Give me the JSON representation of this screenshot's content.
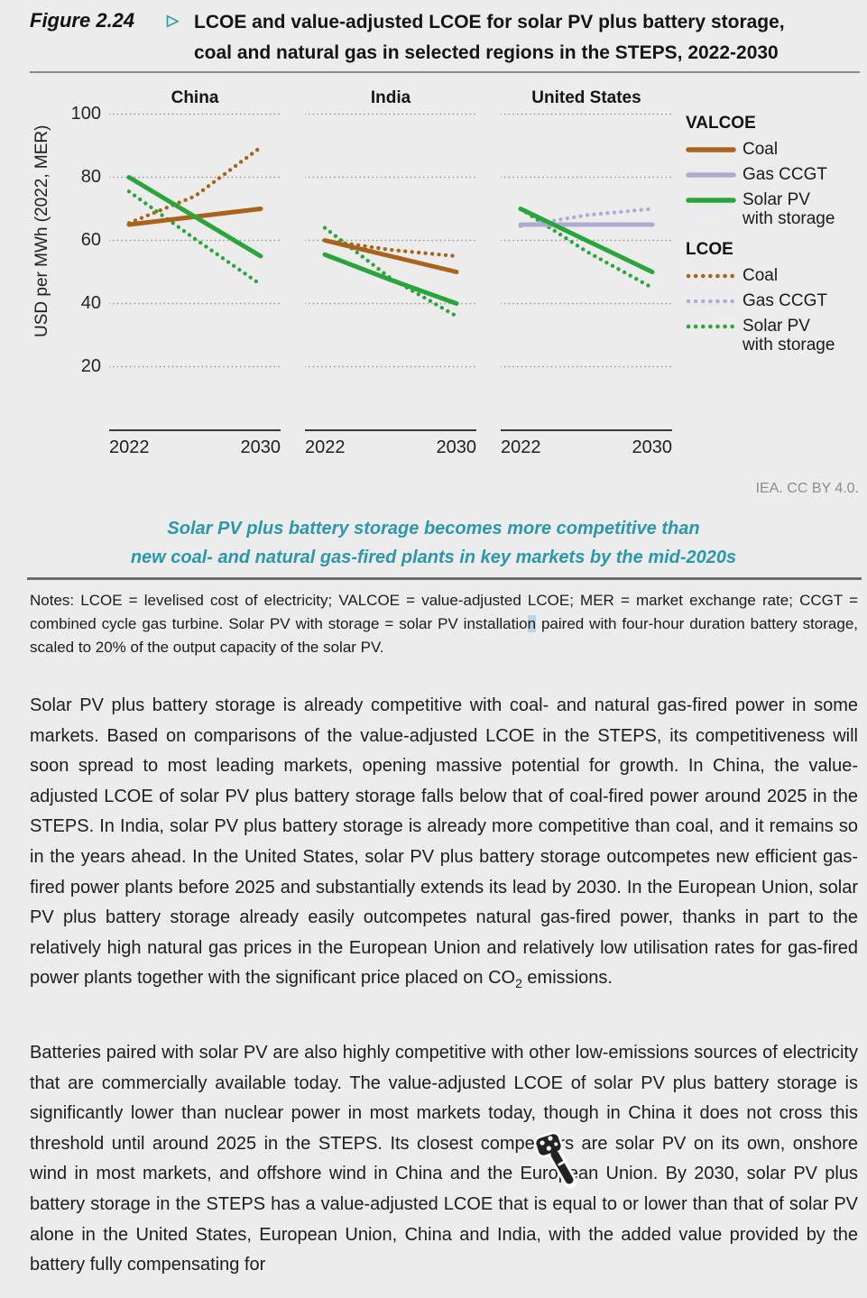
{
  "figure": {
    "label": "Figure 2.24",
    "marker": "▷",
    "title_line1": "LCOE and value-adjusted LCOE for solar PV plus battery storage,",
    "title_line2": "coal and natural gas in selected regions in the STEPS, 2022-2030"
  },
  "chart_data": {
    "type": "line",
    "title": "LCOE and value-adjusted LCOE for solar PV plus battery storage, coal and natural gas in selected regions in the STEPS, 2022-2030",
    "ylabel": "USD per MWh (2022, MER)",
    "yticks": [
      100,
      80,
      60,
      40,
      20
    ],
    "ylim": [
      0,
      109
    ],
    "grid": "dotted-horizontal",
    "legend_position": "right",
    "x_years": [
      2022,
      2026,
      2030
    ],
    "x_axis_labels": [
      "2022",
      "2030"
    ],
    "colors": {
      "coal": "#a9631b",
      "gas_ccgt": "#b0abce",
      "solar": "#2aa53c"
    },
    "panels": [
      {
        "region": "China",
        "series": [
          {
            "name": "LCOE Coal",
            "metric": "LCOE",
            "fuel": "Coal",
            "style": "dotted",
            "color": "coal",
            "values": [
              65.5,
              74,
              89.5
            ]
          },
          {
            "name": "LCOE Solar PV with storage",
            "metric": "LCOE",
            "fuel": "Solar PV with storage",
            "style": "dotted",
            "color": "solar",
            "values": [
              75.5,
              60.5,
              46
            ]
          },
          {
            "name": "VALCOE Coal",
            "metric": "VALCOE",
            "fuel": "Coal",
            "style": "solid",
            "color": "coal",
            "values": [
              65,
              67.5,
              70
            ]
          },
          {
            "name": "VALCOE Solar PV with storage",
            "metric": "VALCOE",
            "fuel": "Solar PV with storage",
            "style": "solid",
            "color": "solar",
            "values": [
              80,
              67.5,
              55
            ]
          }
        ]
      },
      {
        "region": "India",
        "series": [
          {
            "name": "LCOE Coal",
            "metric": "LCOE",
            "fuel": "Coal",
            "style": "dotted",
            "color": "coal",
            "values": [
              60,
              57,
              55
            ]
          },
          {
            "name": "LCOE Solar PV with storage",
            "metric": "LCOE",
            "fuel": "Solar PV with storage",
            "style": "dotted",
            "color": "solar",
            "values": [
              64,
              48,
              36
            ]
          },
          {
            "name": "VALCOE Coal",
            "metric": "VALCOE",
            "fuel": "Coal",
            "style": "solid",
            "color": "coal",
            "values": [
              60,
              55,
              50
            ]
          },
          {
            "name": "VALCOE Solar PV with storage",
            "metric": "VALCOE",
            "fuel": "Solar PV with storage",
            "style": "solid",
            "color": "solar",
            "values": [
              55.5,
              47.5,
              40
            ]
          }
        ]
      },
      {
        "region": "United States",
        "series": [
          {
            "name": "LCOE Gas CCGT",
            "metric": "LCOE",
            "fuel": "Gas CCGT",
            "style": "dotted",
            "color": "gas_ccgt",
            "values": [
              64.5,
              68,
              70
            ]
          },
          {
            "name": "LCOE Solar PV with storage",
            "metric": "LCOE",
            "fuel": "Solar PV with storage",
            "style": "dotted",
            "color": "solar",
            "values": [
              70,
              56.5,
              45
            ]
          },
          {
            "name": "VALCOE Gas CCGT",
            "metric": "VALCOE",
            "fuel": "Gas CCGT",
            "style": "solid",
            "color": "gas_ccgt",
            "values": [
              65,
              65,
              65
            ]
          },
          {
            "name": "VALCOE Solar PV with storage",
            "metric": "VALCOE",
            "fuel": "Solar PV with storage",
            "style": "solid",
            "color": "solar",
            "values": [
              70,
              60,
              50
            ]
          }
        ]
      }
    ]
  },
  "legend": {
    "groups": [
      {
        "header": "VALCOE",
        "style": "solid",
        "items": [
          {
            "label": "Coal",
            "color": "coal"
          },
          {
            "label": "Gas CCGT",
            "color": "gas_ccgt"
          },
          {
            "label": "Solar PV with storage",
            "color": "solar"
          }
        ]
      },
      {
        "header": "LCOE",
        "style": "dotted",
        "items": [
          {
            "label": "Coal",
            "color": "coal"
          },
          {
            "label": "Gas CCGT",
            "color": "gas_ccgt"
          },
          {
            "label": "Solar PV with storage",
            "color": "solar"
          }
        ]
      }
    ]
  },
  "attribution": "IEA. CC BY 4.0.",
  "subtitle": {
    "line1": "Solar PV plus battery storage becomes more competitive than",
    "line2": "new coal- and natural gas-fired plants in key markets by the mid-2020s"
  },
  "notes": {
    "part1": "Notes: LCOE = levelised cost of electricity; VALCOE = value-adjusted LCOE; MER = market exchange rate; CCGT = combined cycle gas turbine. Solar PV with storage = solar PV installatio",
    "highlight": "n",
    "part2": " paired with four-hour duration battery storage, scaled to 20% of the output capacity of the solar PV."
  },
  "paragraphs": {
    "p1_part1": "Solar PV plus battery storage is already competitive with coal- and natural gas-fired power in some markets. Based on comparisons of the value-adjusted LCOE in the STEPS, its competitiveness will soon spread to most leading markets, opening massive potential for growth. In China, the value-adjusted LCOE of solar PV plus battery storage falls below that of coal-fired power around 2025 in the STEPS. In India, solar PV plus battery storage is already more competitive than coal, and it remains so in the years ahead. In the United States, solar PV plus battery storage outcompetes new efficient gas-fired power plants before 2025 and substantially extends its lead by 2030. In the European Union, solar PV plus battery storage already easily outcompetes natural gas-fired power, thanks in part to the relatively high natural gas prices in the European Union and relatively low utilisation rates for gas-fired power plants together with the significant price placed on CO",
    "p1_sub": "2",
    "p1_part2": " emissions.",
    "p2": "Batteries paired with solar PV are also highly competitive with other low-emissions sources of electricity that are commercially available today. The value-adjusted LCOE of solar PV plus battery storage is significantly lower than nuclear power in most markets today, though in China it does not cross this threshold until around 2025 in the STEPS. Its closest competitors are solar PV on its own, onshore wind in most markets, and offshore wind in China and the European Union. By 2030, solar PV plus battery storage in the STEPS has a value-adjusted LCOE that is equal to or lower than that of solar PV alone in the United States, European Union, China and India, with the added value provided by the battery fully compensating for"
  }
}
